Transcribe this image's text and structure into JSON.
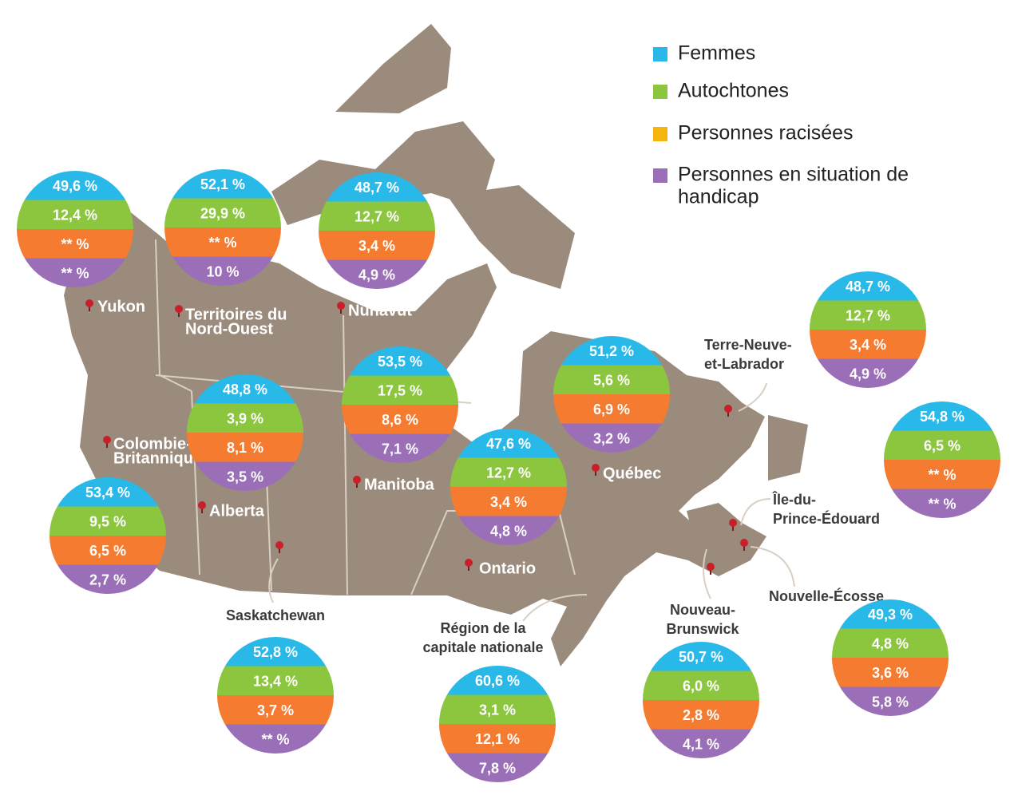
{
  "legend": [
    {
      "label": [
        "Femmes"
      ]
    },
    {
      "label": [
        "Autochtones"
      ]
    },
    {
      "label": [
        "Personnes racisées"
      ]
    },
    {
      "label": [
        "Personnes en situation de",
        "handicap"
      ]
    }
  ],
  "regions": [
    {
      "name": [
        "Yukon"
      ],
      "values": [
        "49,6 %",
        "12,4 %",
        "** %",
        "** %"
      ]
    },
    {
      "name": [
        "Territoires du",
        "Nord-Ouest"
      ],
      "values": [
        "52,1 %",
        "29,9 %",
        "** %",
        "10 %"
      ]
    },
    {
      "name": [
        "Nunavut"
      ],
      "values": [
        "48,7 %",
        "12,7 %",
        "3,4 %",
        "4,9 %"
      ]
    },
    {
      "name": [
        "Colombie-",
        "Britannique"
      ],
      "values": [
        "53,4 %",
        "9,5 %",
        "6,5 %",
        "2,7 %"
      ]
    },
    {
      "name": [
        "Alberta"
      ],
      "values": [
        "48,8 %",
        "3,9 %",
        "8,1 %",
        "3,5 %"
      ]
    },
    {
      "name": [
        "Manitoba"
      ],
      "values": [
        "53,5 %",
        "17,5 %",
        "8,6 %",
        "7,1 %"
      ]
    },
    {
      "name": [
        "Ontario"
      ],
      "values": [
        "47,6 %",
        "12,7 %",
        "3,4 %",
        "4,8 %"
      ]
    },
    {
      "name": [
        "Québec"
      ],
      "values": [
        "51,2 %",
        "5,6 %",
        "6,9 %",
        "3,2 %"
      ]
    },
    {
      "name": [
        "Terre-Neuve-",
        "et-Labrador"
      ],
      "values": [
        "48,7 %",
        "12,7 %",
        "3,4 %",
        "4,9 %"
      ]
    },
    {
      "name": [
        "Saskatchewan"
      ],
      "values": [
        "52,8 %",
        "13,4 %",
        "3,7 %",
        "** %"
      ]
    },
    {
      "name": [
        "Région de la",
        "capitale nationale"
      ],
      "values": [
        "60,6 %",
        "3,1 %",
        "12,1 %",
        "7,8 %"
      ]
    },
    {
      "name": [
        "Nouveau-",
        "Brunswick"
      ],
      "values": [
        "50,7 %",
        "6,0 %",
        "2,8 %",
        "4,1 %"
      ]
    },
    {
      "name": [
        "Nouvelle-Écosse"
      ],
      "values": [
        "49,3 %",
        "4,8 %",
        "3,6 %",
        "5,8 %"
      ]
    },
    {
      "name": [
        "Île-du-",
        "Prince-Édouard"
      ],
      "values": [
        "54,8 %",
        "6,5 %",
        "** %",
        "** %"
      ]
    }
  ]
}
